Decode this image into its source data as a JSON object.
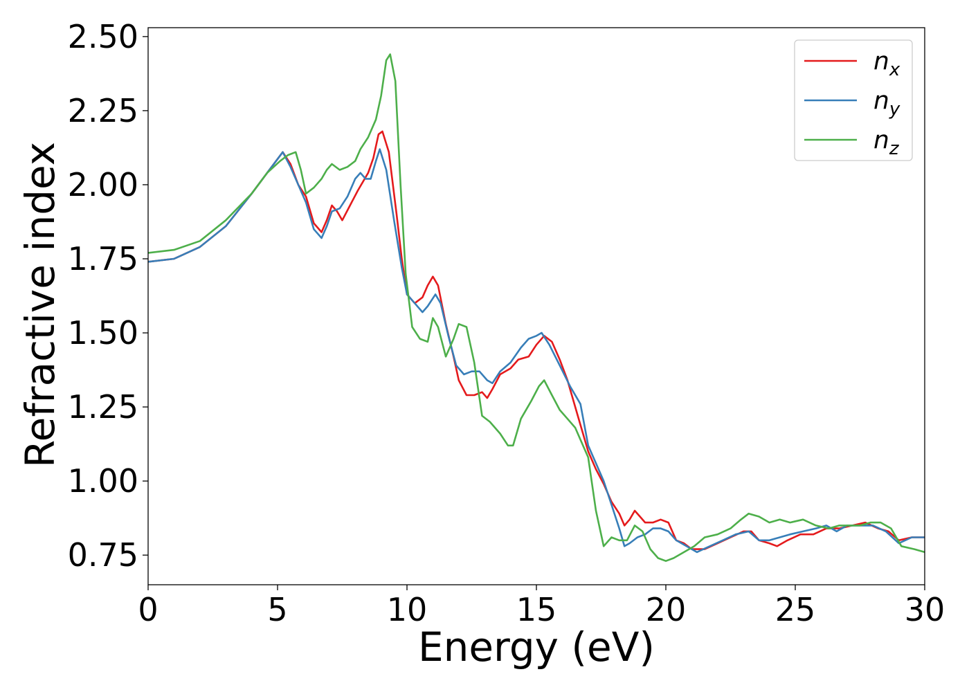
{
  "chart_data": {
    "type": "line",
    "xlabel": "Energy (eV)",
    "ylabel": "Refractive index",
    "xlim": [
      0,
      30
    ],
    "ylim": [
      0.65,
      2.53
    ],
    "xticks": [
      0,
      5,
      10,
      15,
      20,
      25,
      30
    ],
    "xtick_labels": [
      "0",
      "5",
      "10",
      "15",
      "20",
      "25",
      "30"
    ],
    "yticks": [
      0.75,
      1.0,
      1.25,
      1.5,
      1.75,
      2.0,
      2.25,
      2.5
    ],
    "ytick_labels": [
      "0.75",
      "1.00",
      "1.25",
      "1.50",
      "1.75",
      "2.00",
      "2.25",
      "2.50"
    ],
    "grid": false,
    "legend_position": "top-right",
    "series": [
      {
        "name": "n_x",
        "label_base": "n",
        "label_sub": "x",
        "color": "#e41a1c",
        "points": [
          [
            0,
            1.74
          ],
          [
            1,
            1.75
          ],
          [
            2,
            1.79
          ],
          [
            3,
            1.86
          ],
          [
            4,
            1.97
          ],
          [
            4.6,
            2.04
          ],
          [
            5.2,
            2.11
          ],
          [
            5.5,
            2.07
          ],
          [
            5.8,
            2.0
          ],
          [
            6.1,
            1.96
          ],
          [
            6.4,
            1.87
          ],
          [
            6.7,
            1.84
          ],
          [
            6.9,
            1.88
          ],
          [
            7.1,
            1.93
          ],
          [
            7.3,
            1.91
          ],
          [
            7.5,
            1.88
          ],
          [
            7.8,
            1.93
          ],
          [
            8.1,
            1.98
          ],
          [
            8.5,
            2.04
          ],
          [
            8.7,
            2.09
          ],
          [
            8.9,
            2.17
          ],
          [
            9.05,
            2.18
          ],
          [
            9.3,
            2.11
          ],
          [
            9.6,
            1.9
          ],
          [
            9.8,
            1.75
          ],
          [
            10,
            1.63
          ],
          [
            10.3,
            1.6
          ],
          [
            10.6,
            1.62
          ],
          [
            10.8,
            1.66
          ],
          [
            11.0,
            1.69
          ],
          [
            11.2,
            1.66
          ],
          [
            11.5,
            1.53
          ],
          [
            11.8,
            1.42
          ],
          [
            12.0,
            1.34
          ],
          [
            12.3,
            1.29
          ],
          [
            12.6,
            1.29
          ],
          [
            12.9,
            1.3
          ],
          [
            13.1,
            1.28
          ],
          [
            13.3,
            1.31
          ],
          [
            13.6,
            1.36
          ],
          [
            14.0,
            1.38
          ],
          [
            14.3,
            1.41
          ],
          [
            14.7,
            1.42
          ],
          [
            15.0,
            1.46
          ],
          [
            15.3,
            1.49
          ],
          [
            15.6,
            1.47
          ],
          [
            15.9,
            1.41
          ],
          [
            16.2,
            1.34
          ],
          [
            16.6,
            1.22
          ],
          [
            17.0,
            1.1
          ],
          [
            17.3,
            1.04
          ],
          [
            17.6,
            0.99
          ],
          [
            17.9,
            0.93
          ],
          [
            18.2,
            0.89
          ],
          [
            18.4,
            0.85
          ],
          [
            18.6,
            0.87
          ],
          [
            18.8,
            0.9
          ],
          [
            19.0,
            0.88
          ],
          [
            19.2,
            0.86
          ],
          [
            19.5,
            0.86
          ],
          [
            19.8,
            0.87
          ],
          [
            20.1,
            0.86
          ],
          [
            20.4,
            0.8
          ],
          [
            20.7,
            0.79
          ],
          [
            21.0,
            0.77
          ],
          [
            21.5,
            0.77
          ],
          [
            22.0,
            0.79
          ],
          [
            22.5,
            0.81
          ],
          [
            23.0,
            0.83
          ],
          [
            23.3,
            0.83
          ],
          [
            23.6,
            0.8
          ],
          [
            24.0,
            0.79
          ],
          [
            24.3,
            0.78
          ],
          [
            24.7,
            0.8
          ],
          [
            25.2,
            0.82
          ],
          [
            25.7,
            0.82
          ],
          [
            26.2,
            0.84
          ],
          [
            26.7,
            0.84
          ],
          [
            27.2,
            0.85
          ],
          [
            27.7,
            0.86
          ],
          [
            28.2,
            0.84
          ],
          [
            28.6,
            0.83
          ],
          [
            29.0,
            0.8
          ],
          [
            29.5,
            0.81
          ],
          [
            30,
            0.81
          ]
        ]
      },
      {
        "name": "n_y",
        "label_base": "n",
        "label_sub": "y",
        "color": "#377eb8",
        "points": [
          [
            0,
            1.74
          ],
          [
            1,
            1.75
          ],
          [
            2,
            1.79
          ],
          [
            3,
            1.86
          ],
          [
            4,
            1.97
          ],
          [
            4.6,
            2.04
          ],
          [
            5.2,
            2.11
          ],
          [
            5.5,
            2.06
          ],
          [
            5.8,
            2.0
          ],
          [
            6.1,
            1.94
          ],
          [
            6.4,
            1.85
          ],
          [
            6.7,
            1.82
          ],
          [
            6.9,
            1.86
          ],
          [
            7.1,
            1.91
          ],
          [
            7.4,
            1.92
          ],
          [
            7.7,
            1.96
          ],
          [
            8.0,
            2.02
          ],
          [
            8.2,
            2.04
          ],
          [
            8.4,
            2.02
          ],
          [
            8.6,
            2.02
          ],
          [
            8.8,
            2.08
          ],
          [
            8.95,
            2.12
          ],
          [
            9.2,
            2.05
          ],
          [
            9.5,
            1.88
          ],
          [
            9.8,
            1.72
          ],
          [
            10,
            1.63
          ],
          [
            10.3,
            1.6
          ],
          [
            10.6,
            1.57
          ],
          [
            10.8,
            1.59
          ],
          [
            11.1,
            1.63
          ],
          [
            11.3,
            1.6
          ],
          [
            11.6,
            1.49
          ],
          [
            11.9,
            1.39
          ],
          [
            12.2,
            1.36
          ],
          [
            12.5,
            1.37
          ],
          [
            12.8,
            1.37
          ],
          [
            13.1,
            1.34
          ],
          [
            13.3,
            1.33
          ],
          [
            13.6,
            1.37
          ],
          [
            14.0,
            1.4
          ],
          [
            14.4,
            1.45
          ],
          [
            14.7,
            1.48
          ],
          [
            15.0,
            1.49
          ],
          [
            15.2,
            1.5
          ],
          [
            15.5,
            1.46
          ],
          [
            15.9,
            1.39
          ],
          [
            16.3,
            1.32
          ],
          [
            16.7,
            1.26
          ],
          [
            17.0,
            1.12
          ],
          [
            17.3,
            1.06
          ],
          [
            17.6,
            1.0
          ],
          [
            17.9,
            0.92
          ],
          [
            18.2,
            0.84
          ],
          [
            18.4,
            0.78
          ],
          [
            18.6,
            0.79
          ],
          [
            18.9,
            0.81
          ],
          [
            19.2,
            0.82
          ],
          [
            19.5,
            0.84
          ],
          [
            19.8,
            0.84
          ],
          [
            20.1,
            0.83
          ],
          [
            20.4,
            0.8
          ],
          [
            20.8,
            0.78
          ],
          [
            21.2,
            0.76
          ],
          [
            21.7,
            0.78
          ],
          [
            22.2,
            0.8
          ],
          [
            22.7,
            0.82
          ],
          [
            23.2,
            0.83
          ],
          [
            23.6,
            0.8
          ],
          [
            24.0,
            0.8
          ],
          [
            24.4,
            0.81
          ],
          [
            24.8,
            0.82
          ],
          [
            25.3,
            0.83
          ],
          [
            25.8,
            0.84
          ],
          [
            26.2,
            0.85
          ],
          [
            26.6,
            0.83
          ],
          [
            27.0,
            0.85
          ],
          [
            27.5,
            0.85
          ],
          [
            28.0,
            0.85
          ],
          [
            28.5,
            0.83
          ],
          [
            29.0,
            0.79
          ],
          [
            29.5,
            0.81
          ],
          [
            30,
            0.81
          ]
        ]
      },
      {
        "name": "n_z",
        "label_base": "n",
        "label_sub": "z",
        "color": "#4daf4a",
        "points": [
          [
            0,
            1.77
          ],
          [
            1,
            1.78
          ],
          [
            2,
            1.81
          ],
          [
            3,
            1.88
          ],
          [
            4,
            1.97
          ],
          [
            4.6,
            2.04
          ],
          [
            5.1,
            2.08
          ],
          [
            5.4,
            2.1
          ],
          [
            5.7,
            2.11
          ],
          [
            5.9,
            2.05
          ],
          [
            6.1,
            1.97
          ],
          [
            6.4,
            1.99
          ],
          [
            6.7,
            2.02
          ],
          [
            6.9,
            2.05
          ],
          [
            7.1,
            2.07
          ],
          [
            7.4,
            2.05
          ],
          [
            7.7,
            2.06
          ],
          [
            8.0,
            2.08
          ],
          [
            8.2,
            2.12
          ],
          [
            8.5,
            2.16
          ],
          [
            8.8,
            2.22
          ],
          [
            9.0,
            2.3
          ],
          [
            9.2,
            2.42
          ],
          [
            9.35,
            2.44
          ],
          [
            9.55,
            2.35
          ],
          [
            9.75,
            2.0
          ],
          [
            9.95,
            1.7
          ],
          [
            10.2,
            1.52
          ],
          [
            10.5,
            1.48
          ],
          [
            10.8,
            1.47
          ],
          [
            11.0,
            1.55
          ],
          [
            11.2,
            1.52
          ],
          [
            11.5,
            1.42
          ],
          [
            11.8,
            1.48
          ],
          [
            12.0,
            1.53
          ],
          [
            12.3,
            1.52
          ],
          [
            12.6,
            1.4
          ],
          [
            12.9,
            1.22
          ],
          [
            13.2,
            1.2
          ],
          [
            13.6,
            1.16
          ],
          [
            13.9,
            1.12
          ],
          [
            14.1,
            1.12
          ],
          [
            14.4,
            1.21
          ],
          [
            14.8,
            1.27
          ],
          [
            15.1,
            1.32
          ],
          [
            15.3,
            1.34
          ],
          [
            15.6,
            1.29
          ],
          [
            15.9,
            1.24
          ],
          [
            16.2,
            1.21
          ],
          [
            16.5,
            1.18
          ],
          [
            16.8,
            1.12
          ],
          [
            17.0,
            1.08
          ],
          [
            17.3,
            0.9
          ],
          [
            17.6,
            0.78
          ],
          [
            17.9,
            0.81
          ],
          [
            18.2,
            0.8
          ],
          [
            18.5,
            0.8
          ],
          [
            18.8,
            0.85
          ],
          [
            19.1,
            0.83
          ],
          [
            19.4,
            0.77
          ],
          [
            19.7,
            0.74
          ],
          [
            20.0,
            0.73
          ],
          [
            20.3,
            0.74
          ],
          [
            20.7,
            0.76
          ],
          [
            21.1,
            0.78
          ],
          [
            21.5,
            0.81
          ],
          [
            22.0,
            0.82
          ],
          [
            22.5,
            0.84
          ],
          [
            22.9,
            0.87
          ],
          [
            23.2,
            0.89
          ],
          [
            23.6,
            0.88
          ],
          [
            24.0,
            0.86
          ],
          [
            24.4,
            0.87
          ],
          [
            24.8,
            0.86
          ],
          [
            25.3,
            0.87
          ],
          [
            25.8,
            0.85
          ],
          [
            26.3,
            0.84
          ],
          [
            26.7,
            0.85
          ],
          [
            27.1,
            0.85
          ],
          [
            27.5,
            0.85
          ],
          [
            27.9,
            0.86
          ],
          [
            28.3,
            0.86
          ],
          [
            28.7,
            0.84
          ],
          [
            29.1,
            0.78
          ],
          [
            29.6,
            0.77
          ],
          [
            30,
            0.76
          ]
        ]
      }
    ]
  }
}
